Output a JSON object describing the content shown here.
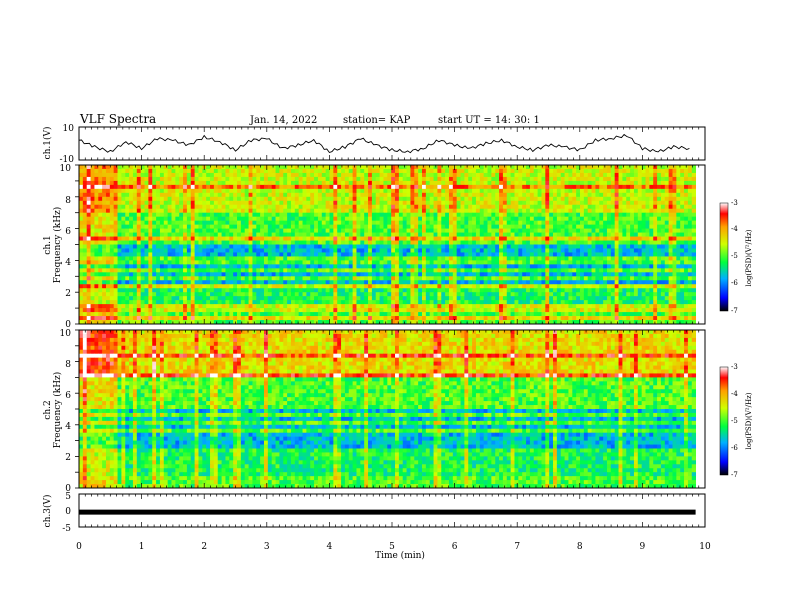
{
  "header": {
    "title": "VLF Spectra",
    "date": "Jan. 14, 2022",
    "station": "station= KAP",
    "start": "start  UT =   14: 30: 1"
  },
  "chart_data": [
    {
      "type": "line",
      "panel": "ch1-waveform",
      "ylabel": "ch.1(V)",
      "ylim": [
        -10,
        10
      ],
      "yticks": [
        "10",
        "-10"
      ],
      "x": [
        0,
        0.25,
        0.5,
        0.75,
        1,
        1.25,
        1.5,
        1.75,
        2,
        2.25,
        2.5,
        2.75,
        3,
        3.25,
        3.5,
        3.75,
        4,
        4.25,
        4.5,
        4.75,
        5,
        5.25,
        5.5,
        5.75,
        6,
        6.25,
        6.5,
        6.75,
        7,
        7.25,
        7.5,
        7.75,
        8,
        8.25,
        8.5,
        8.75,
        9,
        9.25,
        9.5,
        9.75
      ],
      "values": [
        2,
        -2,
        -5,
        1,
        -3,
        3,
        2,
        -1,
        4,
        1,
        -4,
        2,
        3,
        -3,
        -1,
        2,
        -5,
        -2,
        3,
        -1,
        -4,
        -5,
        -3,
        2,
        -1,
        -3,
        0,
        2,
        -2,
        -4,
        -1,
        -2,
        -4,
        2,
        3,
        5,
        -3,
        -5,
        -2,
        -3
      ]
    },
    {
      "type": "heatmap",
      "panel": "ch1-spectrogram",
      "ylabel": "ch.1\nFrequency (kHz)",
      "ylim": [
        0,
        10
      ],
      "yticks": [
        "0",
        "2",
        "4",
        "6",
        "8",
        "10"
      ],
      "colorbar": {
        "label": "log(PSD)(V²/Hz)",
        "range": [
          -7,
          -3
        ],
        "ticks": [
          "-3",
          "-4",
          "-5",
          "-6",
          "-7"
        ]
      }
    },
    {
      "type": "heatmap",
      "panel": "ch2-spectrogram",
      "ylabel": "ch.2\nFrequency (kHz)",
      "ylim": [
        0,
        10
      ],
      "yticks": [
        "0",
        "2",
        "4",
        "6",
        "8",
        "10"
      ],
      "colorbar": {
        "label": "log(PSD)(V²/Hz)",
        "range": [
          -7,
          -3
        ],
        "ticks": [
          "-3",
          "-4",
          "-5",
          "-6",
          "-7"
        ]
      }
    },
    {
      "type": "line",
      "panel": "ch3-waveform",
      "ylabel": "ch.3(V)",
      "ylim": [
        -5,
        5
      ],
      "yticks": [
        "5",
        "0",
        "-5"
      ],
      "x": [
        0,
        9.85
      ],
      "values": [
        -0.5,
        -0.5
      ]
    }
  ],
  "xaxis": {
    "label": "Time (min)",
    "range": [
      0,
      10
    ],
    "ticks": [
      "0",
      "1",
      "2",
      "3",
      "4",
      "5",
      "6",
      "7",
      "8",
      "9",
      "10"
    ]
  }
}
